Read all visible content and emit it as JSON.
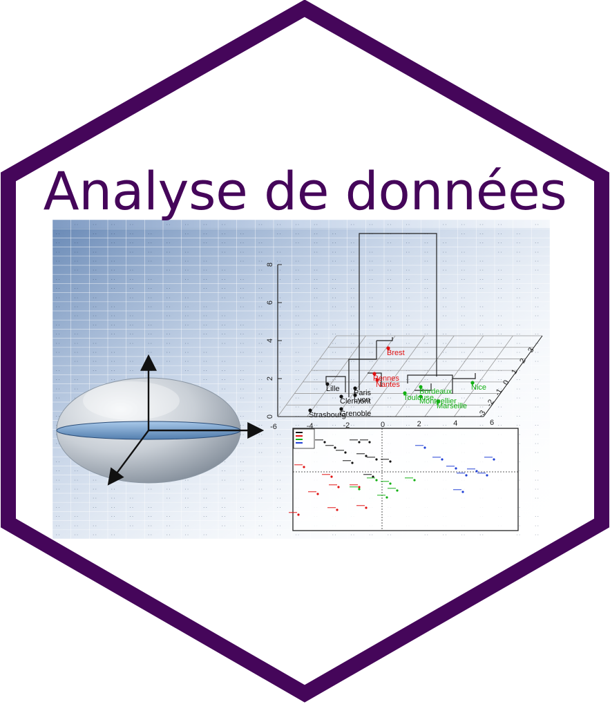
{
  "title": "Analyse de données",
  "colors": {
    "frame": "#45065a",
    "title": "#45065a",
    "red": "#e01010",
    "green": "#12b012",
    "blue": "#1f3fd6",
    "black": "#111111"
  },
  "icons": [
    "hexagon-frame-icon",
    "ellipsoid-icon",
    "axis-arrows-icon",
    "dendrogram-icon",
    "scatter-plot-icon"
  ],
  "plot3d": {
    "z_ticks": [
      "0",
      "2",
      "4",
      "6",
      "8"
    ],
    "x_ticks": [
      "-6",
      "-4",
      "-2",
      "0",
      "2",
      "4",
      "6"
    ],
    "y_ticks": [
      "3",
      "2",
      "1",
      "0",
      "-1",
      "-2",
      "-3"
    ],
    "cities": [
      {
        "name": "Brest",
        "color": "red"
      },
      {
        "name": "Rennes",
        "color": "red"
      },
      {
        "name": "Nantes",
        "color": "red"
      },
      {
        "name": "Lille",
        "color": "black"
      },
      {
        "name": "Paris",
        "color": "black"
      },
      {
        "name": "Clermont",
        "color": "black"
      },
      {
        "name": "Lyon",
        "color": "black"
      },
      {
        "name": "Grenoble",
        "color": "black"
      },
      {
        "name": "Strasbourg",
        "color": "black"
      },
      {
        "name": "Nice",
        "color": "green"
      },
      {
        "name": "Bordeaux",
        "color": "green"
      },
      {
        "name": "Toulouse",
        "color": "green"
      },
      {
        "name": "Montpellier",
        "color": "green"
      },
      {
        "name": "Marseille",
        "color": "green"
      }
    ]
  }
}
